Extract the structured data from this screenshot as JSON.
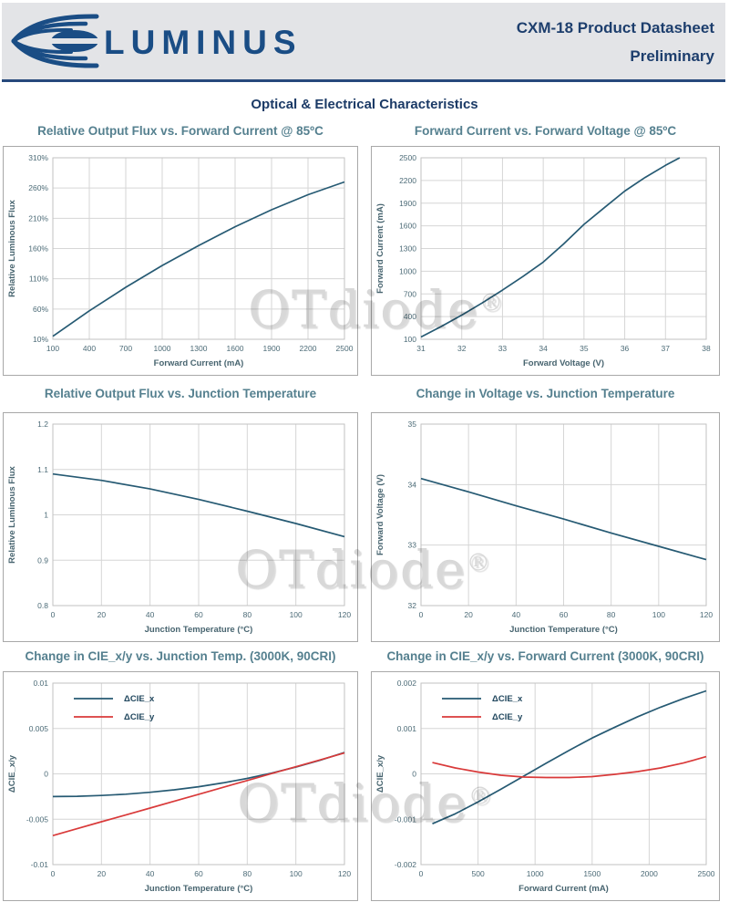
{
  "header": {
    "brand": "LUMINUS",
    "title_line1": "CXM-18 Product Datasheet",
    "title_line2": "Preliminary"
  },
  "section_title": "Optical & Electrical Characteristics",
  "watermark": {
    "text": "OTdiode",
    "reg": "®"
  },
  "colors": {
    "navy": "#265a73",
    "red": "#d93a3a",
    "grid": "#d6d6d6",
    "frame": "#c2c2c2",
    "tick": "#4c6b77",
    "axis": "#47646f",
    "legend_text": "#21475e",
    "brand_navy": "#1a4d85",
    "heading_navy": "#1b3a66",
    "title_teal": "#55808f"
  },
  "chart_data": [
    {
      "type": "line",
      "title": "Relative Output Flux vs. Forward Current @ 85ºC",
      "xlabel": "Forward Current (mA)",
      "ylabel": "Relative Luminous Flux",
      "xlim": [
        100,
        2500
      ],
      "ylim": [
        10,
        310
      ],
      "xticks": [
        100,
        400,
        700,
        1000,
        1300,
        1600,
        1900,
        2200,
        2500
      ],
      "xtick_labels": [
        "100",
        "400",
        "700",
        "1000",
        "1300",
        "1600",
        "1900",
        "2200",
        "2500"
      ],
      "yticks": [
        10,
        60,
        110,
        160,
        210,
        260,
        310
      ],
      "ytick_labels": [
        "10%",
        "60%",
        "110%",
        "160%",
        "210%",
        "260%",
        "310%"
      ],
      "legend": false,
      "series": [
        {
          "name": "Relative Flux",
          "color_key": "navy",
          "x": [
            100,
            400,
            700,
            1000,
            1300,
            1600,
            1900,
            2200,
            2500
          ],
          "y": [
            15,
            57,
            96,
            132,
            165,
            196,
            224,
            249,
            270
          ]
        }
      ]
    },
    {
      "type": "line",
      "title": "Forward Current vs. Forward Voltage @ 85ºC",
      "xlabel": "Forward Voltage (V)",
      "ylabel": "Forward Current (mA)",
      "xlim": [
        31,
        38
      ],
      "ylim": [
        100,
        2500
      ],
      "xticks": [
        31,
        32,
        33,
        34,
        35,
        36,
        37,
        38
      ],
      "xtick_labels": [
        "31",
        "32",
        "33",
        "34",
        "35",
        "36",
        "37",
        "38"
      ],
      "yticks": [
        100,
        400,
        700,
        1000,
        1300,
        1600,
        1900,
        2200,
        2500
      ],
      "ytick_labels": [
        "100",
        "400",
        "700",
        "1000",
        "1300",
        "1600",
        "1900",
        "2200",
        "2500"
      ],
      "legend": false,
      "series": [
        {
          "name": "Forward Current",
          "color_key": "navy",
          "x": [
            31,
            31.5,
            32,
            32.5,
            33,
            33.5,
            34,
            34.5,
            35,
            35.5,
            36,
            36.5,
            37,
            37.35
          ],
          "y": [
            130,
            270,
            420,
            580,
            750,
            930,
            1120,
            1360,
            1620,
            1840,
            2060,
            2240,
            2400,
            2500
          ]
        }
      ]
    },
    {
      "type": "line",
      "title": "Relative Output Flux vs. Junction Temperature",
      "xlabel": "Junction Temperature (°C)",
      "ylabel": "Relative Luminous Flux",
      "xlim": [
        0,
        120
      ],
      "ylim": [
        0.8,
        1.2
      ],
      "xticks": [
        0,
        20,
        40,
        60,
        80,
        100,
        120
      ],
      "xtick_labels": [
        "0",
        "20",
        "40",
        "60",
        "80",
        "100",
        "120"
      ],
      "yticks": [
        0.8,
        0.9,
        1,
        1.1,
        1.2
      ],
      "ytick_labels": [
        "0.8",
        "0.9",
        "1",
        "1.1",
        "1.2"
      ],
      "legend": false,
      "series": [
        {
          "name": "Relative Flux",
          "color_key": "navy",
          "x": [
            0,
            20,
            40,
            60,
            80,
            100,
            120
          ],
          "y": [
            1.09,
            1.076,
            1.057,
            1.034,
            1.008,
            0.981,
            0.952
          ]
        }
      ]
    },
    {
      "type": "line",
      "title": "Change  in Voltage vs. Junction Temperature",
      "xlabel": "Junction Temperature (°C)",
      "ylabel": "Forward Voltage (V)",
      "xlim": [
        0,
        120
      ],
      "ylim": [
        32,
        35
      ],
      "xticks": [
        0,
        20,
        40,
        60,
        80,
        100,
        120
      ],
      "xtick_labels": [
        "0",
        "20",
        "40",
        "60",
        "80",
        "100",
        "120"
      ],
      "yticks": [
        32,
        33,
        34,
        35
      ],
      "ytick_labels": [
        "32",
        "33",
        "34",
        "35"
      ],
      "legend": false,
      "series": [
        {
          "name": "Forward Voltage",
          "color_key": "navy",
          "x": [
            0,
            20,
            40,
            60,
            80,
            100,
            120
          ],
          "y": [
            34.1,
            33.88,
            33.65,
            33.43,
            33.2,
            32.98,
            32.76
          ]
        }
      ]
    },
    {
      "type": "line",
      "title": "Change in CIE_x/y vs. Junction Temp. (3000K, 90CRI)",
      "xlabel": "Junction Temperature (°C)",
      "ylabel": "ΔCIE_x/y",
      "xlim": [
        0,
        120
      ],
      "ylim": [
        -0.01,
        0.01
      ],
      "xticks": [
        0,
        20,
        40,
        60,
        80,
        100,
        120
      ],
      "xtick_labels": [
        "0",
        "20",
        "40",
        "60",
        "80",
        "100",
        "120"
      ],
      "yticks": [
        -0.01,
        -0.005,
        0,
        0.005,
        0.01
      ],
      "ytick_labels": [
        "-0.01",
        "-0.005",
        "0",
        "0.005",
        "0.01"
      ],
      "legend": true,
      "series": [
        {
          "name": "ΔCIE_x",
          "color_key": "navy",
          "x": [
            0,
            10,
            20,
            30,
            40,
            50,
            60,
            70,
            80,
            90,
            100,
            110,
            120
          ],
          "y": [
            -0.0025,
            -0.00247,
            -0.00238,
            -0.00224,
            -0.00203,
            -0.00176,
            -0.00142,
            -0.001,
            -0.0005,
            8e-05,
            0.00075,
            0.0015,
            0.00235
          ]
        },
        {
          "name": "ΔCIE_y",
          "color_key": "red",
          "x": [
            0,
            10,
            20,
            30,
            40,
            50,
            60,
            70,
            80,
            90,
            100,
            110,
            120
          ],
          "y": [
            -0.0068,
            -0.00604,
            -0.00528,
            -0.00453,
            -0.00377,
            -0.00301,
            -0.00225,
            -0.00149,
            -0.00073,
            3e-05,
            0.00078,
            0.00154,
            0.0023
          ]
        }
      ]
    },
    {
      "type": "line",
      "title": "Change in CIE_x/y vs. Forward Current (3000K, 90CRI)",
      "xlabel": "Forward Current (mA)",
      "ylabel": "ΔCIE_x/y",
      "xlim": [
        0,
        2500
      ],
      "ylim": [
        -0.002,
        0.002
      ],
      "xticks": [
        0,
        500,
        1000,
        1500,
        2000,
        2500
      ],
      "xtick_labels": [
        "0",
        "500",
        "1000",
        "1500",
        "2000",
        "2500"
      ],
      "yticks": [
        -0.002,
        -0.001,
        0,
        0.001,
        0.002
      ],
      "ytick_labels": [
        "-0.002",
        "-0.001",
        "0",
        "0.001",
        "0.002"
      ],
      "legend": true,
      "series": [
        {
          "name": "ΔCIE_x",
          "color_key": "navy",
          "x": [
            100,
            300,
            500,
            700,
            900,
            1100,
            1300,
            1500,
            1700,
            1900,
            2100,
            2300,
            2500
          ],
          "y": [
            -0.0011,
            -0.00088,
            -0.00062,
            -0.00034,
            -5e-05,
            0.00024,
            0.00052,
            0.00079,
            0.00103,
            0.00126,
            0.00147,
            0.00166,
            0.00183
          ]
        },
        {
          "name": "ΔCIE_y",
          "color_key": "red",
          "x": [
            100,
            300,
            500,
            700,
            900,
            1100,
            1300,
            1500,
            1700,
            1900,
            2100,
            2300,
            2500
          ],
          "y": [
            0.00025,
            0.00013,
            4e-05,
            -3e-05,
            -7e-05,
            -8e-05,
            -8e-05,
            -6e-05,
            -1e-05,
            5e-05,
            0.00013,
            0.00024,
            0.00038
          ]
        }
      ]
    }
  ]
}
